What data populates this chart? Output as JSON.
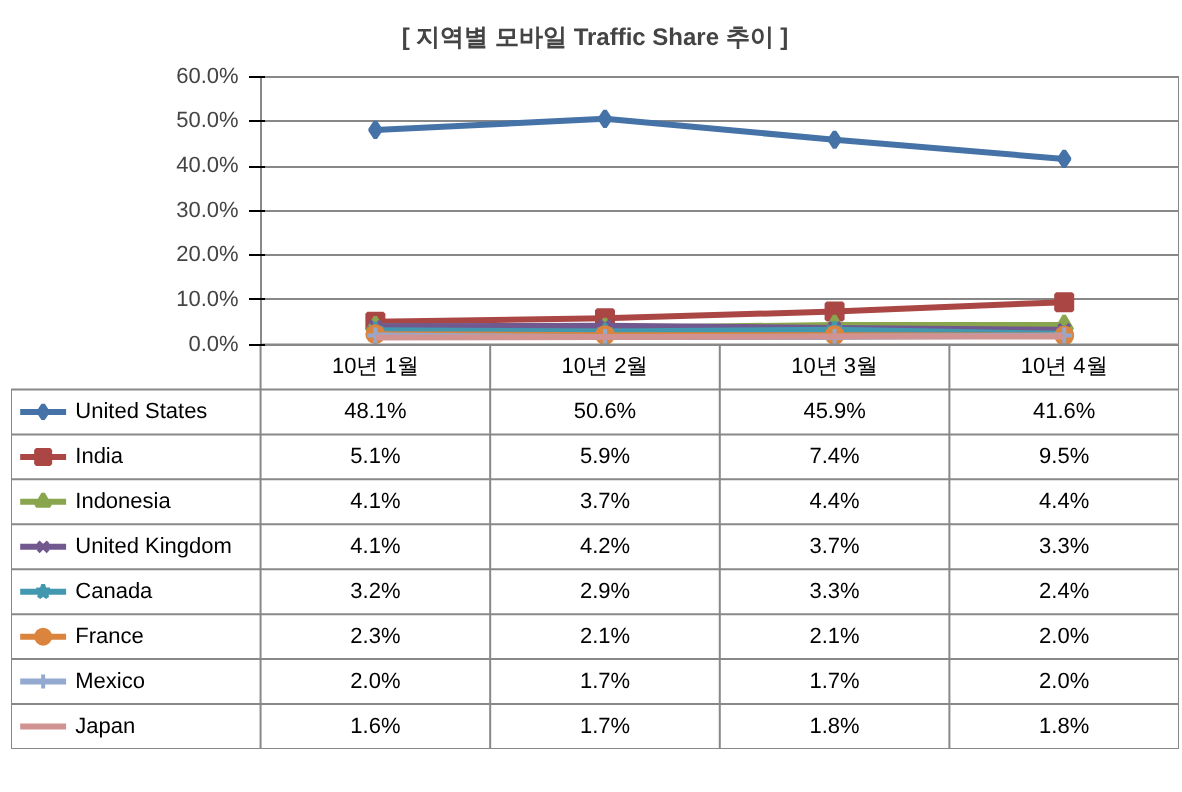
{
  "chart_data": {
    "type": "line",
    "title": "[ 지역별 모바일 Traffic Share 추이 ]",
    "categories": [
      "10년 1월",
      "10년 2월",
      "10년 3월",
      "10년 4월"
    ],
    "series": [
      {
        "name": "United States",
        "color": "#4572a7",
        "marker": "diamond",
        "values": [
          48.1,
          50.6,
          45.9,
          41.6
        ],
        "value_labels": [
          "48.1%",
          "50.6%",
          "45.9%",
          "41.6%"
        ]
      },
      {
        "name": "India",
        "color": "#aa4643",
        "marker": "square",
        "values": [
          5.1,
          5.9,
          7.4,
          9.5
        ],
        "value_labels": [
          "5.1%",
          "5.9%",
          "7.4%",
          "9.5%"
        ]
      },
      {
        "name": "Indonesia",
        "color": "#89a54e",
        "marker": "triangle",
        "values": [
          4.1,
          3.7,
          4.4,
          4.4
        ],
        "value_labels": [
          "4.1%",
          "3.7%",
          "4.4%",
          "4.4%"
        ]
      },
      {
        "name": "United Kingdom",
        "color": "#71588f",
        "marker": "x",
        "values": [
          4.1,
          4.2,
          3.7,
          3.3
        ],
        "value_labels": [
          "4.1%",
          "4.2%",
          "3.7%",
          "3.3%"
        ]
      },
      {
        "name": "Canada",
        "color": "#4198af",
        "marker": "star",
        "values": [
          3.2,
          2.9,
          3.3,
          2.4
        ],
        "value_labels": [
          "3.2%",
          "2.9%",
          "3.3%",
          "2.4%"
        ]
      },
      {
        "name": "France",
        "color": "#db843d",
        "marker": "circle",
        "values": [
          2.3,
          2.1,
          2.1,
          2.0
        ],
        "value_labels": [
          "2.3%",
          "2.1%",
          "2.1%",
          "2.0%"
        ]
      },
      {
        "name": "Mexico",
        "color": "#93a9cf",
        "marker": "cross",
        "values": [
          2.0,
          1.7,
          1.7,
          2.0
        ],
        "value_labels": [
          "2.0%",
          "1.7%",
          "1.7%",
          "2.0%"
        ]
      },
      {
        "name": "Japan",
        "color": "#d19392",
        "marker": "none",
        "values": [
          1.6,
          1.7,
          1.8,
          1.8
        ],
        "value_labels": [
          "1.6%",
          "1.7%",
          "1.8%",
          "1.8%"
        ]
      }
    ],
    "ylim": [
      0,
      60
    ],
    "yticks": [
      {
        "value": 0,
        "label": "0.0%"
      },
      {
        "value": 10,
        "label": "10.0%"
      },
      {
        "value": 20,
        "label": "20.0%"
      },
      {
        "value": 30,
        "label": "30.0%"
      },
      {
        "value": 40,
        "label": "40.0%"
      },
      {
        "value": 50,
        "label": "50.0%"
      },
      {
        "value": 60,
        "label": "60.0%"
      }
    ],
    "grid": "y",
    "legend": "bottom"
  }
}
